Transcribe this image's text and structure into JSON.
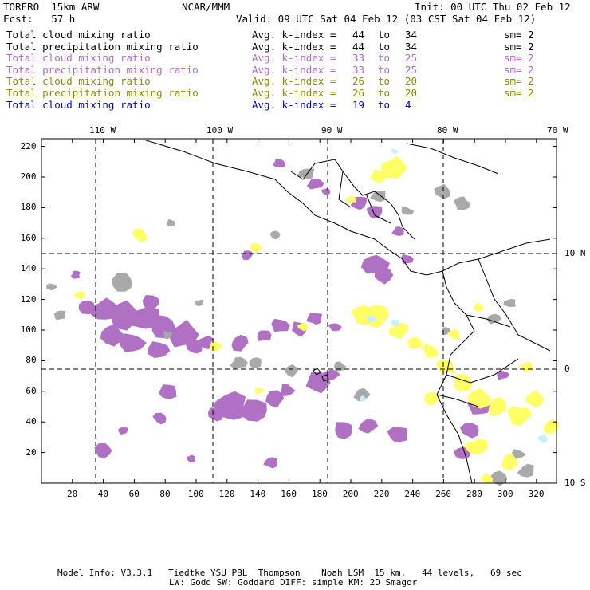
{
  "header": {
    "model_name": "TORERO  15km ARW",
    "org": "NCAR/MMM",
    "init": "Init: 00 UTC Thu 02 Feb 12",
    "fcst": "Fcst:   57 h",
    "valid": "Valid: 09 UTC Sat 04 Feb 12 (03 CST Sat 04 Feb 12)"
  },
  "legend": [
    {
      "field": "Total cloud mixing ratio",
      "index_label": "Avg. k-index =",
      "from": "44",
      "to_word": "to",
      "to": "34",
      "sm": "sm= 2",
      "color": "#000000"
    },
    {
      "field": "Total precipitation mixing ratio",
      "index_label": "Avg. k-index =",
      "from": "44",
      "to_word": "to",
      "to": "34",
      "sm": "sm= 2",
      "color": "#000000"
    },
    {
      "field": "Total cloud mixing ratio",
      "index_label": "Avg. k-index =",
      "from": "33",
      "to_word": "to",
      "to": "25",
      "sm": "sm= 2",
      "color": "#b266c8"
    },
    {
      "field": "Total precipitation mixing ratio",
      "index_label": "Avg. k-index =",
      "from": "33",
      "to_word": "to",
      "to": "25",
      "sm": "sm= 2",
      "color": "#b266c8"
    },
    {
      "field": "Total cloud mixing ratio",
      "index_label": "Avg. k-index =",
      "from": "26",
      "to_word": "to",
      "to": "20",
      "sm": "sm= 2",
      "color": "#8c8c00"
    },
    {
      "field": "Total precipitation mixing ratio",
      "index_label": "Avg. k-index =",
      "from": "26",
      "to_word": "to",
      "to": "20",
      "sm": "sm= 2",
      "color": "#8c8c00"
    },
    {
      "field": "Total cloud mixing ratio",
      "index_label": "Avg. k-index =",
      "from": "19",
      "to_word": "to",
      "to": "4",
      "sm": "",
      "color": "#0000cc"
    }
  ],
  "map": {
    "lon_labels": [
      "110 W",
      "100 W",
      "90 W",
      "80 W",
      "70 W"
    ],
    "lat_labels": [
      "10 N",
      "0",
      "10 S"
    ],
    "x_ticks": [
      "20",
      "40",
      "60",
      "80",
      "100",
      "120",
      "140",
      "160",
      "180",
      "200",
      "220",
      "240",
      "260",
      "280",
      "300",
      "320"
    ],
    "y_ticks": [
      "220",
      "200",
      "180",
      "160",
      "140",
      "120",
      "100",
      "80",
      "60",
      "40",
      "20"
    ],
    "colors": {
      "gray": "#a9a9a9",
      "purple": "#b070c4",
      "yellow": "#ffff66",
      "light_blue": "#c8f0ff",
      "line": "#000000"
    }
  },
  "footer": {
    "line1": "Model Info: V3.3.1   Tiedtke YSU PBL  Thompson    Noah LSM  15 km,   44 levels,   69 sec",
    "line2": "LW: Godd SW: Goddard DIFF: simple KM: 2D Smagor"
  }
}
